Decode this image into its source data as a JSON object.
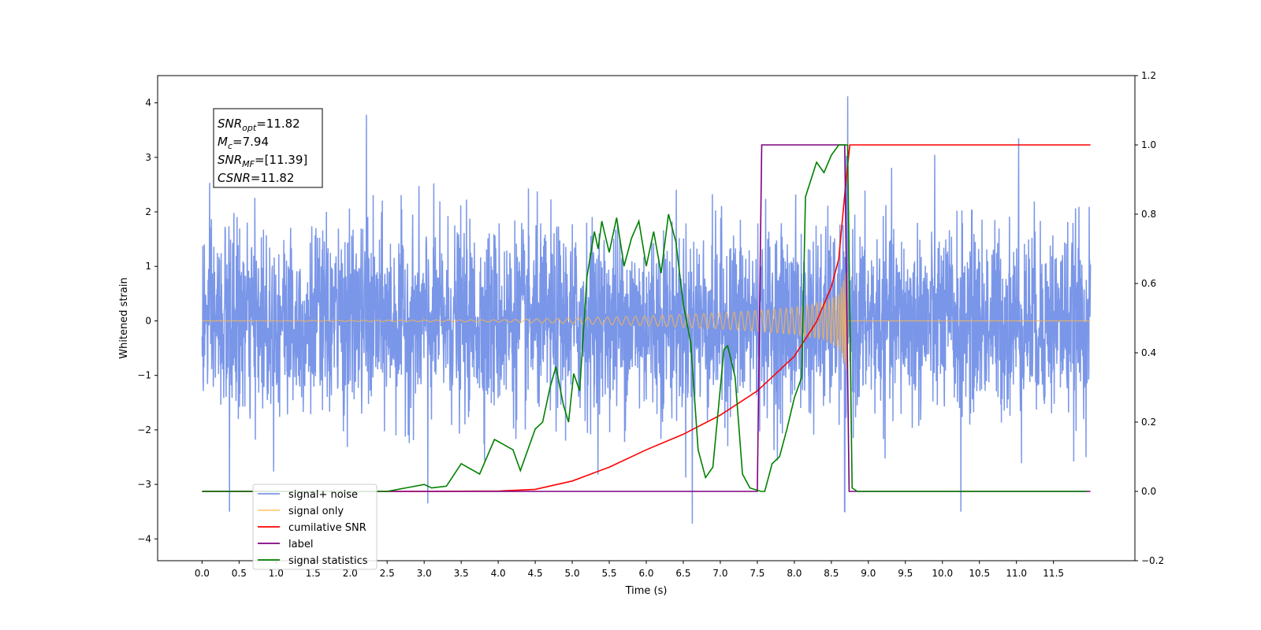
{
  "chart_data": {
    "type": "line",
    "xlabel": "Time (s)",
    "ylabel": "Whitened strain",
    "xlim": [
      -0.6,
      12.6
    ],
    "ylim": [
      -4.4,
      4.5
    ],
    "ylim_right": [
      -0.2,
      1.2
    ],
    "x_ticks": [
      0.0,
      0.5,
      1.0,
      1.5,
      2.0,
      2.5,
      3.0,
      3.5,
      4.0,
      4.5,
      5.0,
      5.5,
      6.0,
      6.5,
      7.0,
      7.5,
      8.0,
      8.5,
      9.0,
      9.5,
      10.0,
      10.5,
      11.0,
      11.5
    ],
    "x_tick_labels": [
      "0.0",
      "0.5",
      "1.0",
      "1.5",
      "2.0",
      "2.5",
      "3.0",
      "3.5",
      "4.0",
      "4.5",
      "5.0",
      "5.5",
      "6.0",
      "6.5",
      "7.0",
      "7.5",
      "8.0",
      "8.5",
      "9.0",
      "9.5",
      "10.0",
      "10.5",
      "11.0",
      "11.5"
    ],
    "y_ticks": [
      4,
      3,
      2,
      1,
      0,
      -1,
      -2,
      -3,
      -4
    ],
    "y_tick_labels": [
      "4",
      "3",
      "2",
      "1",
      "0",
      "−1",
      "−2",
      "−3",
      "−4"
    ],
    "y_right_ticks": [
      1.2,
      1.0,
      0.8,
      0.6,
      0.4,
      0.2,
      0.0,
      -0.2
    ],
    "y_right_tick_labels": [
      "1.2",
      "1.0",
      "0.8",
      "0.6",
      "0.4",
      "0.2",
      "0.0",
      "−0.2"
    ],
    "grid": false,
    "legend_position": "lower-left",
    "annotation": {
      "lines": [
        {
          "var": "SNR",
          "sub": "opt",
          "value": "=11.82"
        },
        {
          "var": "M",
          "sub": "c",
          "value": "=7.94"
        },
        {
          "var": "SNR",
          "sub": "MF",
          "value": "=[11.39]"
        },
        {
          "var": "CSNR",
          "sub": "",
          "value": "=11.82"
        }
      ]
    },
    "series": [
      {
        "name": "signal+ noise",
        "color": "#7a96e8",
        "axis": "left",
        "kind": "noise",
        "x_range": [
          0.0,
          12.0
        ],
        "sigma": 0.85,
        "notable_spikes": [
          [
            0.37,
            -3.5
          ],
          [
            2.22,
            3.78
          ],
          [
            3.05,
            -3.35
          ],
          [
            6.62,
            -3.72
          ],
          [
            8.68,
            -3.5
          ],
          [
            8.72,
            4.12
          ],
          [
            10.25,
            -3.5
          ],
          [
            11.03,
            3.35
          ]
        ]
      },
      {
        "name": "signal only",
        "color": "#ffb74d",
        "axis": "left",
        "kind": "chirp",
        "x_range": [
          0.0,
          12.0
        ],
        "merger_time": 8.72,
        "envelope": [
          [
            0.0,
            0.0
          ],
          [
            4.0,
            0.02
          ],
          [
            5.0,
            0.05
          ],
          [
            6.0,
            0.09
          ],
          [
            7.0,
            0.15
          ],
          [
            7.5,
            0.19
          ],
          [
            8.0,
            0.25
          ],
          [
            8.4,
            0.35
          ],
          [
            8.6,
            0.5
          ],
          [
            8.7,
            0.9
          ]
        ]
      },
      {
        "name": "cumilative SNR",
        "color": "#ff0000",
        "axis": "right",
        "points": [
          [
            0.0,
            0.0
          ],
          [
            3.0,
            0.0
          ],
          [
            4.0,
            0.001
          ],
          [
            4.5,
            0.006
          ],
          [
            5.0,
            0.03
          ],
          [
            5.5,
            0.07
          ],
          [
            6.0,
            0.12
          ],
          [
            6.5,
            0.165
          ],
          [
            7.0,
            0.22
          ],
          [
            7.5,
            0.29
          ],
          [
            8.0,
            0.39
          ],
          [
            8.3,
            0.49
          ],
          [
            8.5,
            0.59
          ],
          [
            8.6,
            0.67
          ],
          [
            8.7,
            0.9
          ],
          [
            8.75,
            1.0
          ],
          [
            12.0,
            1.0
          ]
        ]
      },
      {
        "name": "label",
        "color": "#800080",
        "axis": "right",
        "points": [
          [
            0.0,
            0.0
          ],
          [
            7.5,
            0.0
          ],
          [
            7.56,
            1.0
          ],
          [
            8.68,
            1.0
          ],
          [
            8.74,
            0.0
          ],
          [
            12.0,
            0.0
          ]
        ]
      },
      {
        "name": "signal statistics",
        "color": "#008000",
        "axis": "right",
        "points": [
          [
            0.0,
            0.0
          ],
          [
            2.5,
            0.0
          ],
          [
            2.75,
            0.01
          ],
          [
            3.0,
            0.02
          ],
          [
            3.1,
            0.01
          ],
          [
            3.3,
            0.015
          ],
          [
            3.5,
            0.08
          ],
          [
            3.75,
            0.05
          ],
          [
            3.95,
            0.15
          ],
          [
            4.2,
            0.12
          ],
          [
            4.3,
            0.06
          ],
          [
            4.5,
            0.18
          ],
          [
            4.6,
            0.2
          ],
          [
            4.7,
            0.3
          ],
          [
            4.78,
            0.36
          ],
          [
            4.88,
            0.25
          ],
          [
            4.95,
            0.2
          ],
          [
            5.02,
            0.34
          ],
          [
            5.1,
            0.29
          ],
          [
            5.2,
            0.62
          ],
          [
            5.3,
            0.75
          ],
          [
            5.35,
            0.7
          ],
          [
            5.4,
            0.78
          ],
          [
            5.5,
            0.69
          ],
          [
            5.6,
            0.79
          ],
          [
            5.7,
            0.65
          ],
          [
            5.8,
            0.73
          ],
          [
            5.9,
            0.78
          ],
          [
            6.0,
            0.65
          ],
          [
            6.1,
            0.75
          ],
          [
            6.2,
            0.63
          ],
          [
            6.3,
            0.8
          ],
          [
            6.4,
            0.72
          ],
          [
            6.5,
            0.54
          ],
          [
            6.6,
            0.43
          ],
          [
            6.7,
            0.12
          ],
          [
            6.8,
            0.04
          ],
          [
            6.9,
            0.07
          ],
          [
            7.05,
            0.41
          ],
          [
            7.1,
            0.42
          ],
          [
            7.2,
            0.33
          ],
          [
            7.3,
            0.05
          ],
          [
            7.4,
            0.01
          ],
          [
            7.55,
            0.0
          ],
          [
            7.6,
            0.0
          ],
          [
            7.7,
            0.08
          ],
          [
            7.8,
            0.1
          ],
          [
            7.9,
            0.18
          ],
          [
            8.0,
            0.27
          ],
          [
            8.1,
            0.33
          ],
          [
            8.15,
            0.85
          ],
          [
            8.3,
            0.95
          ],
          [
            8.4,
            0.92
          ],
          [
            8.5,
            0.97
          ],
          [
            8.6,
            1.0
          ],
          [
            8.72,
            1.0
          ],
          [
            8.78,
            0.01
          ],
          [
            8.85,
            0.0
          ],
          [
            11.95,
            0.0
          ]
        ]
      }
    ]
  }
}
